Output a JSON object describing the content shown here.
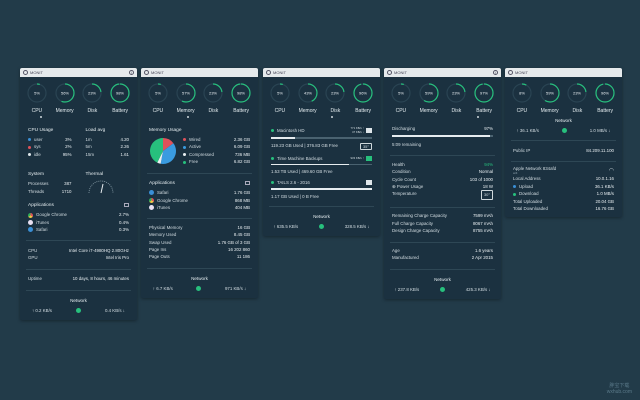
{
  "app_title": "MONIT",
  "labels": {
    "cpu": "CPU",
    "memory": "Memory",
    "disk": "Disk",
    "battery": "Battery"
  },
  "colors": {
    "accent": "#27c07d",
    "background": "#223b49",
    "panel": "#1b3140",
    "user": "#3a8fd6",
    "sys": "#e0525a",
    "idle": "#dfe6ea"
  },
  "panels": [
    {
      "gauges": [
        "5%",
        "56%",
        "23%",
        "98%"
      ],
      "gauge_values": [
        5,
        56,
        23,
        98
      ],
      "cpu_usage": {
        "title": "CPU Usage",
        "rows": [
          [
            "user",
            "3%"
          ],
          [
            "sys",
            "2%"
          ],
          [
            "idle",
            "95%"
          ]
        ]
      },
      "load": {
        "title": "Load avg",
        "rows": [
          [
            "1m",
            "4.20"
          ],
          [
            "5m",
            "2.26"
          ],
          [
            "15m",
            "1.61"
          ]
        ]
      },
      "system": {
        "title": "System",
        "rows": [
          [
            "Processes",
            "387"
          ],
          [
            "Threads",
            "1710"
          ]
        ]
      },
      "thermal": {
        "title": "Thermal"
      },
      "apps": {
        "title": "Applications",
        "rows": [
          [
            "Google Chrome",
            "2.7%"
          ],
          [
            "iTunes",
            "0.4%"
          ],
          [
            "Safari",
            "0.3%"
          ]
        ]
      },
      "hw": [
        [
          "CPU",
          "Intel Core i7-4980HQ 2.80GHz"
        ],
        [
          "GPU",
          "Intel Iris Pro"
        ]
      ],
      "uptime": [
        "Uptime",
        "10 days, 8 hours, 46 minutes"
      ],
      "network": {
        "title": "Network",
        "up": "↑ 0.2 KB/s",
        "down": "0.4 KB/s ↓"
      }
    },
    {
      "gauges": [
        "5%",
        "57%",
        "23%",
        "98%"
      ],
      "gauge_values": [
        5,
        57,
        23,
        98
      ],
      "memory_usage": {
        "title": "Memory Usage",
        "rows": [
          [
            "Wired",
            "2.36 GB",
            "#e0525a",
            2.36
          ],
          [
            "Active",
            "6.09 GB",
            "#3a9be0",
            6.09
          ],
          [
            "Compressed",
            "736 MB",
            "#e8eef1",
            0.72
          ],
          [
            "Free",
            "6.82 GB",
            "#27c07d",
            6.82
          ]
        ]
      },
      "apps": {
        "title": "Applications",
        "rows": [
          [
            "Safari",
            "1.76 GB"
          ],
          [
            "Google Chrome",
            "868 MB"
          ],
          [
            "iTunes",
            "404 MB"
          ]
        ]
      },
      "stats": [
        [
          "Physical Memory",
          "16 GB"
        ],
        [
          "Memory Used",
          "8.45 GB"
        ],
        [
          "Swap Used",
          "1.76 GB of 3 GB"
        ],
        [
          "Page Ins",
          "16 202 860"
        ],
        [
          "Page Outs",
          "11 186"
        ]
      ],
      "network": {
        "title": "Network",
        "up": "↑ 6.7 KB/s",
        "down": "971 KB/s ↓"
      }
    },
    {
      "gauges": [
        "5%",
        "43%",
        "23%",
        "96%"
      ],
      "gauge_values": [
        5,
        43,
        23,
        96
      ],
      "disks": [
        {
          "name": "Macintosh HD",
          "io": [
            "771 KB/s ↑",
            "47 KB/s ↓"
          ],
          "used_fraction": 0.24,
          "info": "119.23 GB Used  |  376.83 GB Free",
          "temp": "35°"
        },
        {
          "name": "Time Machine Backups",
          "io": [
            "933 KB/s ↑"
          ],
          "used_fraction": 0.77,
          "info": "1.53 TB Used  |  469.60 GB Free"
        },
        {
          "name": "TAILS 2.6 - 2016",
          "io": [],
          "used_fraction": 1.0,
          "info": "1.17 GB Used  |  0 B Free"
        }
      ],
      "network": {
        "title": "Network",
        "up": "↑ 635.5 KB/s",
        "down": "328.5 KB/s ↓"
      }
    },
    {
      "gauges": [
        "5%",
        "59%",
        "23%",
        "97%"
      ],
      "gauge_values": [
        5,
        59,
        23,
        97
      ],
      "battery": {
        "status": "Discharging",
        "percent": "97%",
        "level": 97,
        "remaining": "5:09  remaining"
      },
      "health": [
        [
          "Health",
          "94%"
        ],
        [
          "Condition",
          "Normal"
        ],
        [
          "Cycle Count",
          "103 of 1000"
        ],
        [
          "⊕ Power Usage",
          "18 W"
        ],
        [
          "Temperature",
          "30°"
        ]
      ],
      "capacity": [
        [
          "Remaining Charge Capacity",
          "7599 mAh"
        ],
        [
          "Full Charge Capacity",
          "8067 mAh"
        ],
        [
          "Design Charge Capacity",
          "8755 mAh"
        ]
      ],
      "age": [
        [
          "Age",
          "1.6 years"
        ],
        [
          "Manufactured",
          "2 Apr 2015"
        ]
      ],
      "network": {
        "title": "Network",
        "up": "↑ 237.8 KB/s",
        "down": "425.3 KB/s ↓"
      }
    },
    {
      "gauges": [
        "8%",
        "59%",
        "23%",
        "96%"
      ],
      "gauge_values": [
        8,
        59,
        23,
        96
      ],
      "network": {
        "title": "Network",
        "up": "↑ 36.1 KB/s",
        "down": "1.0 MB/s ↓"
      },
      "public_ip": [
        "Public IP",
        "84.209.11.100"
      ],
      "wifi": {
        "name": "Apple Network 834afd",
        "sub": "wifi"
      },
      "rows": [
        [
          "Local Address",
          "10.0.1.16"
        ],
        [
          "Upload",
          "36.1 KB/s"
        ],
        [
          "Download",
          "1.0 MB/s"
        ],
        [
          "Total Uploaded",
          "20.04 GB"
        ],
        [
          "Total Downloaded",
          "16.76 GB"
        ]
      ]
    }
  ],
  "watermark": [
    "胖宝下载",
    "wxhub.com"
  ]
}
